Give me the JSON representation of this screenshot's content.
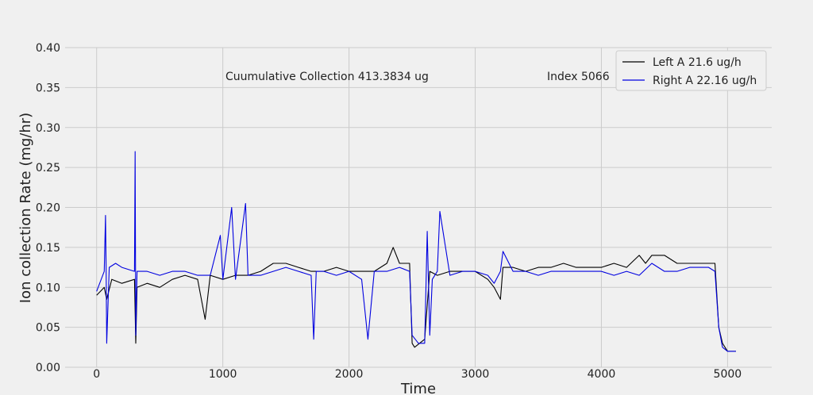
{
  "chart_data": {
    "type": "line",
    "title": "",
    "xlabel": "Time",
    "ylabel": "Ion collection Rate (mg/hr)",
    "xlim": [
      -250,
      5350
    ],
    "ylim": [
      0,
      0.4
    ],
    "xticks": [
      0,
      1000,
      2000,
      3000,
      4000,
      5000
    ],
    "yticks": [
      0.0,
      0.05,
      0.1,
      0.15,
      0.2,
      0.25,
      0.3,
      0.35,
      0.4
    ],
    "ytick_labels": [
      "0.00",
      "0.05",
      "0.10",
      "0.15",
      "0.20",
      "0.25",
      "0.30",
      "0.35",
      "0.40"
    ],
    "grid": true,
    "legend_position": "top-right",
    "annotations": [
      {
        "text": "Cuumulative Collection 413.3834 ug",
        "x": 1000,
        "y": 0.36
      },
      {
        "text": "Index 5066",
        "x": 3540,
        "y": 0.36
      }
    ],
    "series": [
      {
        "name": "Left A 21.6 ug/h",
        "color": "#000000",
        "x": [
          0,
          60,
          80,
          120,
          200,
          300,
          310,
          320,
          400,
          500,
          600,
          700,
          800,
          860,
          900,
          1000,
          1100,
          1200,
          1300,
          1400,
          1500,
          1600,
          1700,
          1800,
          1900,
          2000,
          2100,
          2200,
          2300,
          2350,
          2400,
          2480,
          2500,
          2520,
          2600,
          2640,
          2700,
          2800,
          2900,
          3000,
          3100,
          3150,
          3200,
          3220,
          3300,
          3400,
          3500,
          3600,
          3700,
          3800,
          3900,
          4000,
          4100,
          4200,
          4300,
          4350,
          4400,
          4500,
          4600,
          4700,
          4800,
          4850,
          4900,
          4930,
          4960,
          5000,
          5066
        ],
        "y": [
          0.09,
          0.1,
          0.085,
          0.11,
          0.105,
          0.11,
          0.03,
          0.1,
          0.105,
          0.1,
          0.11,
          0.115,
          0.11,
          0.06,
          0.115,
          0.11,
          0.115,
          0.115,
          0.12,
          0.13,
          0.13,
          0.125,
          0.12,
          0.12,
          0.125,
          0.12,
          0.12,
          0.12,
          0.13,
          0.15,
          0.13,
          0.13,
          0.03,
          0.025,
          0.035,
          0.12,
          0.115,
          0.12,
          0.12,
          0.12,
          0.11,
          0.1,
          0.085,
          0.125,
          0.125,
          0.12,
          0.125,
          0.125,
          0.13,
          0.125,
          0.125,
          0.125,
          0.13,
          0.125,
          0.14,
          0.13,
          0.14,
          0.14,
          0.13,
          0.13,
          0.13,
          0.13,
          0.13,
          0.05,
          0.03,
          0.02,
          0.02
        ]
      },
      {
        "name": "Right A 22.16 ug/h",
        "color": "#0000e0",
        "x": [
          0,
          60,
          70,
          75,
          80,
          100,
          150,
          200,
          300,
          305,
          310,
          320,
          400,
          500,
          600,
          700,
          800,
          900,
          980,
          1000,
          1070,
          1100,
          1180,
          1200,
          1300,
          1400,
          1500,
          1600,
          1700,
          1720,
          1740,
          1800,
          1900,
          2000,
          2100,
          2150,
          2200,
          2300,
          2400,
          2480,
          2500,
          2550,
          2600,
          2620,
          2640,
          2660,
          2700,
          2720,
          2800,
          2900,
          3000,
          3100,
          3150,
          3200,
          3220,
          3300,
          3400,
          3500,
          3600,
          3700,
          3800,
          3900,
          4000,
          4100,
          4200,
          4300,
          4400,
          4500,
          4600,
          4700,
          4800,
          4850,
          4900,
          4930,
          4960,
          5000,
          5066
        ],
        "y": [
          0.095,
          0.12,
          0.19,
          0.12,
          0.03,
          0.125,
          0.13,
          0.125,
          0.12,
          0.27,
          0.04,
          0.12,
          0.12,
          0.115,
          0.12,
          0.12,
          0.115,
          0.115,
          0.165,
          0.11,
          0.2,
          0.11,
          0.205,
          0.115,
          0.115,
          0.12,
          0.125,
          0.12,
          0.115,
          0.035,
          0.12,
          0.12,
          0.115,
          0.12,
          0.11,
          0.035,
          0.12,
          0.12,
          0.125,
          0.12,
          0.04,
          0.03,
          0.03,
          0.17,
          0.04,
          0.11,
          0.12,
          0.195,
          0.115,
          0.12,
          0.12,
          0.115,
          0.105,
          0.12,
          0.145,
          0.12,
          0.12,
          0.115,
          0.12,
          0.12,
          0.12,
          0.12,
          0.12,
          0.115,
          0.12,
          0.115,
          0.13,
          0.12,
          0.12,
          0.125,
          0.125,
          0.125,
          0.12,
          0.05,
          0.025,
          0.02,
          0.02
        ]
      }
    ]
  }
}
